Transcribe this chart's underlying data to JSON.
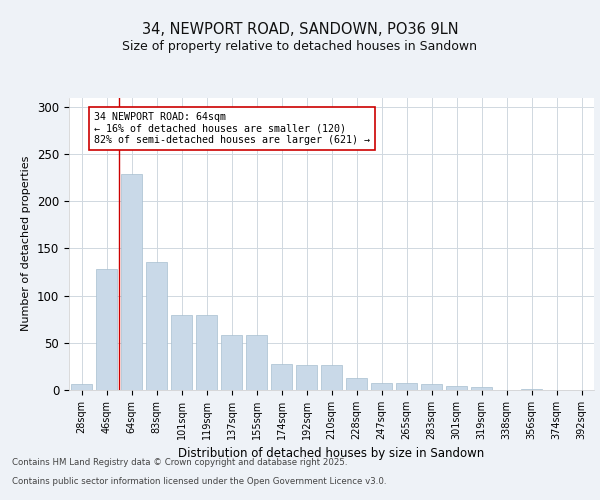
{
  "title_line1": "34, NEWPORT ROAD, SANDOWN, PO36 9LN",
  "title_line2": "Size of property relative to detached houses in Sandown",
  "xlabel": "Distribution of detached houses by size in Sandown",
  "ylabel": "Number of detached properties",
  "categories": [
    "28sqm",
    "46sqm",
    "64sqm",
    "83sqm",
    "101sqm",
    "119sqm",
    "137sqm",
    "155sqm",
    "174sqm",
    "192sqm",
    "210sqm",
    "228sqm",
    "247sqm",
    "265sqm",
    "283sqm",
    "301sqm",
    "319sqm",
    "338sqm",
    "356sqm",
    "374sqm",
    "392sqm"
  ],
  "values": [
    6,
    128,
    229,
    136,
    79,
    79,
    58,
    58,
    28,
    27,
    26,
    13,
    7,
    7,
    6,
    4,
    3,
    0,
    1,
    0,
    0
  ],
  "bar_color": "#c9d9e8",
  "bar_edge_color": "#a8bfd0",
  "vline_x_index": 1.5,
  "vline_color": "#cc0000",
  "annotation_text": "34 NEWPORT ROAD: 64sqm\n← 16% of detached houses are smaller (120)\n82% of semi-detached houses are larger (621) →",
  "annotation_box_color": "#ffffff",
  "annotation_box_edge": "#cc0000",
  "ylim": [
    0,
    310
  ],
  "yticks": [
    0,
    50,
    100,
    150,
    200,
    250,
    300
  ],
  "footer_line1": "Contains HM Land Registry data © Crown copyright and database right 2025.",
  "footer_line2": "Contains public sector information licensed under the Open Government Licence v3.0.",
  "bg_color": "#eef2f7",
  "plot_bg_color": "#ffffff",
  "grid_color": "#d0d8e0"
}
